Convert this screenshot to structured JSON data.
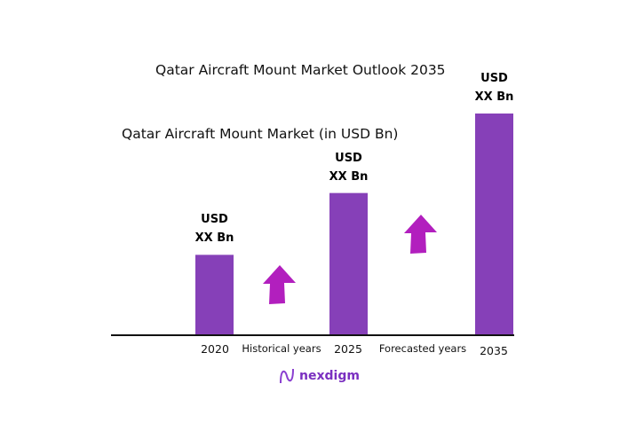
{
  "title": "Qatar Aircraft Mount Market Outlook 2035",
  "subtitle": "Qatar Aircraft Mount Market (in USD Bn)",
  "chart_data": {
    "type": "bar",
    "title": "Qatar Aircraft Mount Market Outlook 2035",
    "subtitle": "Qatar Aircraft Mount Market (in USD Bn)",
    "categories": [
      "2020",
      "2025",
      "2035"
    ],
    "values": [
      36,
      64,
      100
    ],
    "data_labels": [
      [
        "USD",
        "XX Bn"
      ],
      [
        "USD",
        "XX Bn"
      ],
      [
        "USD",
        "XX Bn"
      ]
    ],
    "period_labels": [
      "Historical years",
      "Forecasted years"
    ],
    "ylim": [
      0,
      100
    ],
    "grid": false,
    "colors": {
      "bar": "#8640b8",
      "arrow": "#b21fbe",
      "axis": "#111111"
    }
  },
  "logo": "nexdigm"
}
